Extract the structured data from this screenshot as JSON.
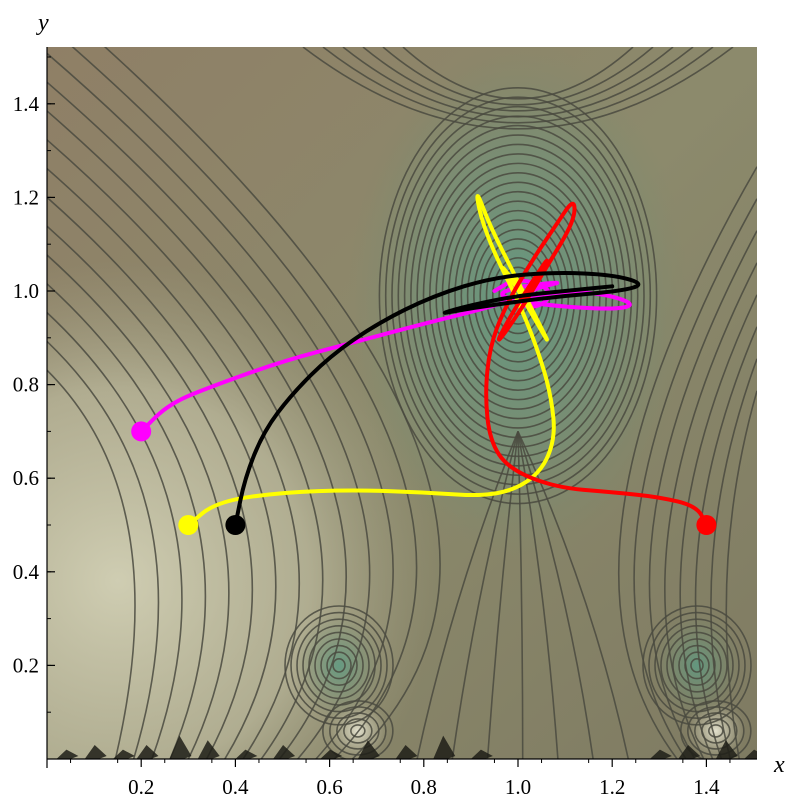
{
  "chart_data": {
    "type": "line",
    "title": "",
    "xlabel": "x",
    "ylabel": "y",
    "xlim": [
      0,
      1.55
    ],
    "ylim": [
      0,
      1.55
    ],
    "x_ticks": [
      "0.2",
      "0.4",
      "0.6",
      "0.8",
      "1.0",
      "1.2",
      "1.4"
    ],
    "y_ticks": [
      "0.2",
      "0.4",
      "0.6",
      "0.8",
      "1.0",
      "1.2",
      "1.4"
    ],
    "grid": false,
    "background": "contour plot of potential with attractors near (1.0, 1.0), (0.62, 0.2), (1.38, 0.2)",
    "colors": {
      "contour_line": "#4a4a40",
      "background_dark": "#8a7a62",
      "background_light": "#c8c6aa",
      "well_green": "#6f9078"
    },
    "series": [
      {
        "color": "#ff00ff",
        "start": [
          0.2,
          0.7
        ],
        "points": [
          [
            0.2,
            0.7
          ],
          [
            0.26,
            0.76
          ],
          [
            0.36,
            0.8
          ],
          [
            0.5,
            0.85
          ],
          [
            0.65,
            0.89
          ],
          [
            0.8,
            0.93
          ],
          [
            0.92,
            0.96
          ],
          [
            1.02,
            0.99
          ],
          [
            1.12,
            1.0
          ],
          [
            1.2,
            0.99
          ],
          [
            1.25,
            0.97
          ],
          [
            1.2,
            0.96
          ],
          [
            1.05,
            0.97
          ],
          [
            0.95,
            0.99
          ],
          [
            1.0,
            1.01
          ],
          [
            1.1,
            1.02
          ],
          [
            1.05,
            1.01
          ],
          [
            0.98,
            0.98
          ],
          [
            1.04,
            0.96
          ],
          [
            1.08,
            1.0
          ],
          [
            1.0,
            1.03
          ],
          [
            0.95,
            1.0
          ]
        ]
      },
      {
        "color": "#ffff00",
        "start": [
          0.3,
          0.5
        ],
        "points": [
          [
            0.3,
            0.5
          ],
          [
            0.36,
            0.55
          ],
          [
            0.5,
            0.57
          ],
          [
            0.65,
            0.575
          ],
          [
            0.8,
            0.57
          ],
          [
            0.95,
            0.56
          ],
          [
            1.04,
            0.6
          ],
          [
            1.08,
            0.68
          ],
          [
            1.07,
            0.78
          ],
          [
            1.04,
            0.88
          ],
          [
            1.0,
            0.98
          ],
          [
            0.95,
            1.08
          ],
          [
            0.92,
            1.16
          ],
          [
            0.91,
            1.22
          ],
          [
            0.94,
            1.14
          ],
          [
            0.99,
            1.04
          ],
          [
            1.04,
            0.94
          ],
          [
            1.07,
            0.88
          ],
          [
            1.03,
            0.95
          ],
          [
            0.99,
            1.02
          ],
          [
            0.96,
            1.06
          ],
          [
            1.0,
            1.01
          ]
        ]
      },
      {
        "color": "#ff0000",
        "start": [
          1.4,
          0.5
        ],
        "points": [
          [
            1.4,
            0.5
          ],
          [
            1.38,
            0.54
          ],
          [
            1.3,
            0.56
          ],
          [
            1.2,
            0.57
          ],
          [
            1.08,
            0.58
          ],
          [
            0.98,
            0.62
          ],
          [
            0.94,
            0.68
          ],
          [
            0.93,
            0.78
          ],
          [
            0.94,
            0.88
          ],
          [
            0.97,
            0.96
          ],
          [
            1.02,
            1.05
          ],
          [
            1.08,
            1.14
          ],
          [
            1.12,
            1.2
          ],
          [
            1.12,
            1.15
          ],
          [
            1.06,
            1.05
          ],
          [
            1.0,
            0.95
          ],
          [
            0.95,
            0.88
          ],
          [
            0.98,
            0.94
          ],
          [
            1.03,
            1.02
          ],
          [
            1.07,
            1.08
          ],
          [
            1.04,
            1.02
          ],
          [
            1.0,
            0.97
          ],
          [
            1.03,
            1.0
          ]
        ]
      },
      {
        "color": "#000000",
        "start": [
          0.4,
          0.5
        ],
        "points": [
          [
            0.4,
            0.5
          ],
          [
            0.42,
            0.6
          ],
          [
            0.46,
            0.7
          ],
          [
            0.52,
            0.78
          ],
          [
            0.6,
            0.86
          ],
          [
            0.7,
            0.93
          ],
          [
            0.82,
            0.99
          ],
          [
            0.95,
            1.03
          ],
          [
            1.08,
            1.04
          ],
          [
            1.2,
            1.035
          ],
          [
            1.27,
            1.015
          ],
          [
            1.22,
            1.0
          ],
          [
            1.1,
            0.99
          ],
          [
            0.98,
            0.975
          ],
          [
            0.88,
            0.96
          ],
          [
            0.83,
            0.95
          ],
          [
            0.9,
            0.97
          ],
          [
            1.0,
            0.99
          ],
          [
            1.1,
            1.0
          ],
          [
            1.2,
            1.01
          ]
        ]
      }
    ]
  }
}
